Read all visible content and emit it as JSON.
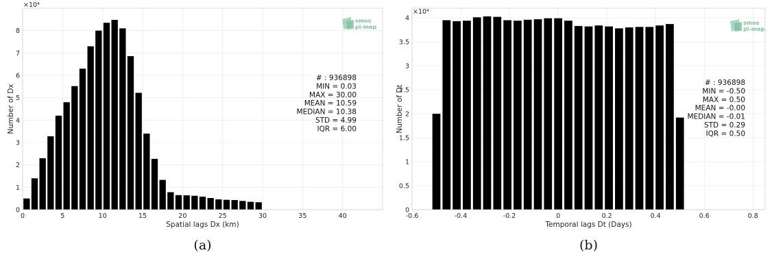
{
  "charts": [
    {
      "caption": "(a)",
      "exponent_label": "×10⁴",
      "logo": {
        "line1": "smos",
        "line2": "pi-mep"
      },
      "stats": [
        "# : 936898",
        "MIN = 0.03",
        "MAX =  30.00",
        "MEAN = 10.59",
        "MEDIAN = 10.38",
        "STD = 4.99",
        "IQR = 6.00"
      ],
      "x_ticks": [
        "0",
        "5",
        "10",
        "15",
        "20",
        "25",
        "30",
        "35",
        "40"
      ],
      "y_ticks": [
        "0",
        "1",
        "2",
        "3",
        "4",
        "5",
        "6",
        "7",
        "8"
      ]
    },
    {
      "caption": "(b)",
      "exponent_label": "×10⁴",
      "logo": {
        "line1": "smos",
        "line2": "pi-mep"
      },
      "stats": [
        "# : 936898",
        "MIN = -0.50",
        "MAX =  0.50",
        "MEAN = -0.00",
        "MEDIAN = -0.01",
        "STD = 0.29",
        "IQR = 0.50"
      ],
      "x_ticks": [
        "-0.6",
        "-0.4",
        "-0.2",
        "0",
        "0.2",
        "0.4",
        "0.6",
        "0.8"
      ],
      "y_ticks": [
        "0",
        "0.5",
        "1",
        "1.5",
        "2",
        "2.5",
        "3",
        "3.5",
        "4"
      ]
    }
  ],
  "chart_data": [
    {
      "type": "bar",
      "xlabel": "Spatial lags Dx (km)",
      "ylabel": "Number of Dx",
      "xlim": [
        0,
        45
      ],
      "ylim": [
        0,
        90000
      ],
      "x_ticks": [
        0,
        5,
        10,
        15,
        20,
        25,
        30,
        35,
        40
      ],
      "y_ticks": [
        0,
        10000,
        20000,
        30000,
        40000,
        50000,
        60000,
        70000,
        80000
      ],
      "grid": true,
      "bar_width": 0.8,
      "x": [
        0.5,
        1.5,
        2.5,
        3.5,
        4.5,
        5.5,
        6.5,
        7.5,
        8.5,
        9.5,
        10.5,
        11.5,
        12.5,
        13.5,
        14.5,
        15.5,
        16.5,
        17.5,
        18.5,
        19.5,
        20.5,
        21.5,
        22.5,
        23.5,
        24.5,
        25.5,
        26.5,
        27.5,
        28.5,
        29.5
      ],
      "values": [
        5000,
        14000,
        23000,
        32800,
        42000,
        48000,
        55200,
        63000,
        73000,
        80000,
        83500,
        84800,
        81000,
        68600,
        52200,
        34000,
        22700,
        13300,
        7800,
        6500,
        6400,
        6200,
        5800,
        5200,
        4600,
        4400,
        4300,
        3900,
        3500,
        3300
      ]
    },
    {
      "type": "bar",
      "xlabel": "Temporal lags Dt (Days)",
      "ylabel": "Number of Dt",
      "xlim": [
        -0.6,
        0.85
      ],
      "ylim": [
        0,
        42000
      ],
      "x_ticks": [
        -0.6,
        -0.4,
        -0.2,
        0,
        0.2,
        0.4,
        0.6,
        0.8
      ],
      "y_ticks": [
        0,
        5000,
        10000,
        15000,
        20000,
        25000,
        30000,
        35000,
        40000
      ],
      "grid": true,
      "bar_width": 0.033,
      "x": [
        -0.5,
        -0.4583,
        -0.4167,
        -0.375,
        -0.3333,
        -0.2917,
        -0.25,
        -0.2083,
        -0.1667,
        -0.125,
        -0.0833,
        -0.0417,
        0.0,
        0.0417,
        0.0833,
        0.125,
        0.1667,
        0.2083,
        0.25,
        0.2917,
        0.3333,
        0.375,
        0.4167,
        0.4583,
        0.5
      ],
      "values": [
        20000,
        39500,
        39300,
        39400,
        40100,
        40300,
        40200,
        39500,
        39400,
        39600,
        39700,
        39900,
        39900,
        39400,
        38300,
        38200,
        38400,
        38200,
        37800,
        38000,
        38100,
        38100,
        38400,
        38700,
        19200
      ]
    }
  ]
}
